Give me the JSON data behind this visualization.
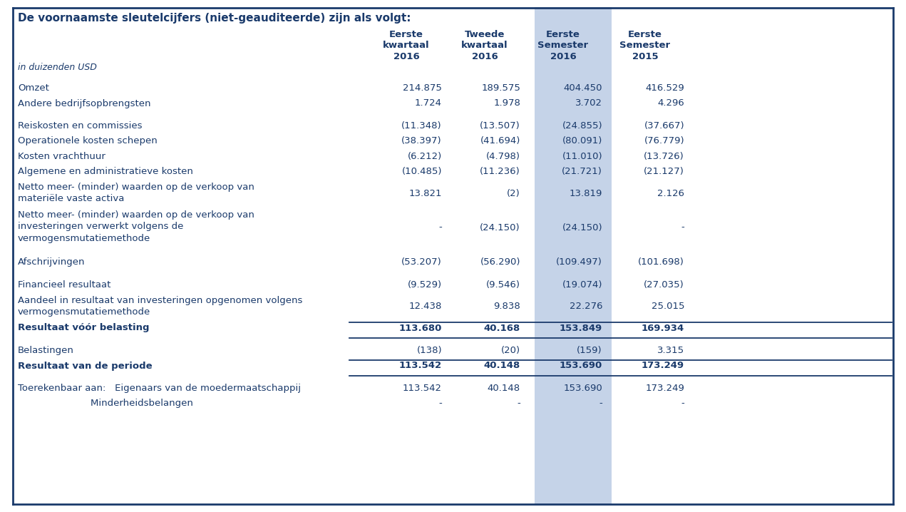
{
  "title": "De voornaamste sleutelcijfers (niet-geauditeerde) zijn als volgt:",
  "col_headers": [
    [
      "Eerste",
      "kwartaal",
      "2016"
    ],
    [
      "Tweede",
      "kwartaal",
      "2016"
    ],
    [
      "Eerste",
      "Semester",
      "2016"
    ],
    [
      "Eerste",
      "Semester",
      "2015"
    ]
  ],
  "subtitle": "in duizenden USD",
  "highlight_col": 2,
  "highlight_color": "#c5d3e8",
  "rows": [
    {
      "label": "Omzet",
      "values": [
        "214.875",
        "189.575",
        "404.450",
        "416.529"
      ],
      "bold": false,
      "top_space": true,
      "line_above": false,
      "line_below": false,
      "nlines": 1
    },
    {
      "label": "Andere bedrijfsopbrengsten",
      "values": [
        "1.724",
        "1.978",
        "3.702",
        "4.296"
      ],
      "bold": false,
      "top_space": false,
      "line_above": false,
      "line_below": false,
      "nlines": 1
    },
    {
      "label": "Reiskosten en commissies",
      "values": [
        "(11.348)",
        "(13.507)",
        "(24.855)",
        "(37.667)"
      ],
      "bold": false,
      "top_space": true,
      "line_above": false,
      "line_below": false,
      "nlines": 1
    },
    {
      "label": "Operationele kosten schepen",
      "values": [
        "(38.397)",
        "(41.694)",
        "(80.091)",
        "(76.779)"
      ],
      "bold": false,
      "top_space": false,
      "line_above": false,
      "line_below": false,
      "nlines": 1
    },
    {
      "label": "Kosten vrachthuur",
      "values": [
        "(6.212)",
        "(4.798)",
        "(11.010)",
        "(13.726)"
      ],
      "bold": false,
      "top_space": false,
      "line_above": false,
      "line_below": false,
      "nlines": 1
    },
    {
      "label": "Algemene en administratieve kosten",
      "values": [
        "(10.485)",
        "(11.236)",
        "(21.721)",
        "(21.127)"
      ],
      "bold": false,
      "top_space": false,
      "line_above": false,
      "line_below": false,
      "nlines": 1
    },
    {
      "label": "Netto meer- (minder) waarden op de verkoop van\nmateriële vaste activa",
      "values": [
        "13.821",
        "(2)",
        "13.819",
        "2.126"
      ],
      "bold": false,
      "top_space": false,
      "line_above": false,
      "line_below": false,
      "nlines": 2
    },
    {
      "label": "Netto meer- (minder) waarden op de verkoop van\ninvesteringen verwerkt volgens de\nvermogensmutatiemethode",
      "values": [
        "-",
        "(24.150)",
        "(24.150)",
        "-"
      ],
      "bold": false,
      "top_space": false,
      "line_above": false,
      "line_below": false,
      "nlines": 3
    },
    {
      "label": "Afschrijvingen",
      "values": [
        "(53.207)",
        "(56.290)",
        "(109.497)",
        "(101.698)"
      ],
      "bold": false,
      "top_space": true,
      "line_above": false,
      "line_below": false,
      "nlines": 1
    },
    {
      "label": "Financieel resultaat",
      "values": [
        "(9.529)",
        "(9.546)",
        "(19.074)",
        "(27.035)"
      ],
      "bold": false,
      "top_space": true,
      "line_above": false,
      "line_below": false,
      "nlines": 1
    },
    {
      "label": "Aandeel in resultaat van investeringen opgenomen volgens\nvermogensmutatiemethode",
      "values": [
        "12.438",
        "9.838",
        "22.276",
        "25.015"
      ],
      "bold": false,
      "top_space": false,
      "line_above": false,
      "line_below": false,
      "nlines": 2
    },
    {
      "label": "Resultaat vóór belasting",
      "values": [
        "113.680",
        "40.168",
        "153.849",
        "169.934"
      ],
      "bold": true,
      "top_space": false,
      "line_above": true,
      "line_below": true,
      "nlines": 1
    },
    {
      "label": "Belastingen",
      "values": [
        "(138)",
        "(20)",
        "(159)",
        "3.315"
      ],
      "bold": false,
      "top_space": true,
      "line_above": false,
      "line_below": false,
      "nlines": 1
    },
    {
      "label": "Resultaat van de periode",
      "values": [
        "113.542",
        "40.148",
        "153.690",
        "173.249"
      ],
      "bold": true,
      "top_space": false,
      "line_above": true,
      "line_below": true,
      "nlines": 1
    },
    {
      "label": "Toerekenbaar aan:   Eigenaars van de moedermaatschappij",
      "values": [
        "113.542",
        "40.148",
        "153.690",
        "173.249"
      ],
      "bold": false,
      "top_space": true,
      "line_above": false,
      "line_below": false,
      "nlines": 1
    },
    {
      "label": "                        Minderheidsbelangen",
      "values": [
        "-",
        "-",
        "-",
        "-"
      ],
      "bold": false,
      "top_space": false,
      "line_above": false,
      "line_below": false,
      "nlines": 1
    }
  ],
  "text_color": "#1a3a6b",
  "line_color": "#1a3a6b",
  "bg_color": "#ffffff",
  "border_color": "#1a3a6b"
}
